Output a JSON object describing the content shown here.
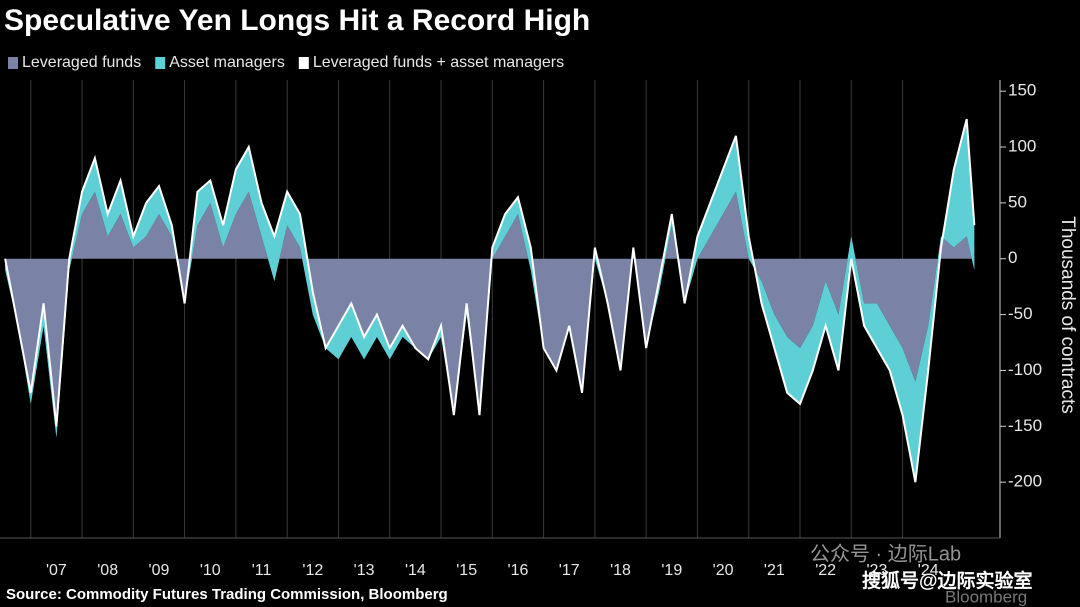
{
  "chart_data": {
    "type": "area_line",
    "title": "Speculative Yen Longs Hit a Record High",
    "ylabel": "Thousands of contracts",
    "source": "Source: Commodity Futures Trading Commission, Bloomberg",
    "logo": "Bloomberg",
    "watermarks": [
      "公众号 · 边际Lab",
      "搜狐号@边际实验室"
    ],
    "x": [
      2006.5,
      2006.75,
      2007,
      2007.25,
      2007.5,
      2007.75,
      2008,
      2008.25,
      2008.5,
      2008.75,
      2009,
      2009.25,
      2009.5,
      2009.75,
      2010,
      2010.25,
      2010.5,
      2010.75,
      2011,
      2011.25,
      2011.5,
      2011.75,
      2012,
      2012.25,
      2012.5,
      2012.75,
      2013,
      2013.25,
      2013.5,
      2013.75,
      2014,
      2014.25,
      2014.5,
      2014.75,
      2015,
      2015.25,
      2015.5,
      2015.75,
      2016,
      2016.25,
      2016.5,
      2016.75,
      2017,
      2017.25,
      2017.5,
      2017.75,
      2018,
      2018.25,
      2018.5,
      2018.75,
      2019,
      2019.25,
      2019.5,
      2019.75,
      2020,
      2020.25,
      2020.5,
      2020.75,
      2021,
      2021.25,
      2021.5,
      2021.75,
      2022,
      2022.25,
      2022.5,
      2022.75,
      2023,
      2023.25,
      2023.5,
      2023.75,
      2024,
      2024.25,
      2024.5,
      2024.75,
      2025,
      2025.25,
      2025.4
    ],
    "series": [
      {
        "name": "Leveraged funds",
        "color": "#7a83a6",
        "role": "area",
        "values": [
          -10,
          -60,
          -130,
          -60,
          -160,
          -10,
          40,
          60,
          20,
          40,
          10,
          20,
          40,
          20,
          -40,
          30,
          50,
          10,
          40,
          60,
          20,
          -20,
          30,
          10,
          -50,
          -80,
          -90,
          -70,
          -90,
          -70,
          -90,
          -70,
          -80,
          -90,
          -70,
          -140,
          -50,
          -140,
          0,
          20,
          40,
          -10,
          -80,
          -100,
          -60,
          -120,
          0,
          -40,
          -100,
          10,
          -80,
          -30,
          30,
          -40,
          0,
          20,
          40,
          60,
          0,
          -20,
          -50,
          -70,
          -80,
          -60,
          -20,
          -50,
          20,
          -40,
          -40,
          -60,
          -80,
          -110,
          -60,
          20,
          10,
          20,
          -10
        ]
      },
      {
        "name": "Asset managers",
        "color": "#5fcfd6",
        "role": "area",
        "values": [
          10,
          0,
          10,
          20,
          10,
          10,
          20,
          30,
          20,
          30,
          10,
          30,
          25,
          10,
          0,
          30,
          20,
          20,
          40,
          40,
          30,
          40,
          30,
          30,
          20,
          0,
          30,
          30,
          20,
          20,
          10,
          10,
          0,
          0,
          10,
          0,
          10,
          0,
          10,
          20,
          15,
          20,
          0,
          0,
          0,
          0,
          10,
          0,
          0,
          0,
          0,
          10,
          10,
          0,
          20,
          30,
          40,
          50,
          20,
          -20,
          -30,
          -50,
          -50,
          -40,
          -40,
          -50,
          -20,
          -20,
          -40,
          -40,
          -60,
          -90,
          -40,
          -10,
          70,
          105,
          40
        ]
      },
      {
        "name": "Leveraged funds + asset managers",
        "color": "#ffffff",
        "role": "line",
        "values": [
          0,
          -60,
          -120,
          -40,
          -150,
          0,
          60,
          90,
          40,
          70,
          20,
          50,
          65,
          30,
          -40,
          60,
          70,
          30,
          80,
          100,
          50,
          20,
          60,
          40,
          -30,
          -80,
          -60,
          -40,
          -70,
          -50,
          -80,
          -60,
          -80,
          -90,
          -60,
          -140,
          -40,
          -140,
          10,
          40,
          55,
          10,
          -80,
          -100,
          -60,
          -120,
          10,
          -40,
          -100,
          10,
          -80,
          -20,
          40,
          -40,
          20,
          50,
          80,
          110,
          20,
          -40,
          -80,
          -120,
          -130,
          -100,
          -60,
          -100,
          0,
          -60,
          -80,
          -100,
          -140,
          -200,
          -100,
          10,
          80,
          125,
          30
        ]
      }
    ],
    "xlim": [
      2006.4,
      2025.9
    ],
    "xticks": [
      {
        "value": 2007,
        "label": "'07"
      },
      {
        "value": 2008,
        "label": "'08"
      },
      {
        "value": 2009,
        "label": "'09"
      },
      {
        "value": 2010,
        "label": "'10"
      },
      {
        "value": 2011,
        "label": "'11"
      },
      {
        "value": 2012,
        "label": "'12"
      },
      {
        "value": 2013,
        "label": "'13"
      },
      {
        "value": 2014,
        "label": "'14"
      },
      {
        "value": 2015,
        "label": "'15"
      },
      {
        "value": 2016,
        "label": "'16"
      },
      {
        "value": 2017,
        "label": "'17"
      },
      {
        "value": 2018,
        "label": "'18"
      },
      {
        "value": 2019,
        "label": "'19"
      },
      {
        "value": 2020,
        "label": "'20"
      },
      {
        "value": 2021,
        "label": "'21"
      },
      {
        "value": 2022,
        "label": "'22"
      },
      {
        "value": 2023,
        "label": "'23"
      },
      {
        "value": 2024,
        "label": "'24"
      }
    ],
    "ylim": [
      -250,
      160
    ],
    "yticks": [
      150,
      100,
      50,
      0,
      -50,
      -100,
      -150,
      -200
    ],
    "grid": true
  }
}
